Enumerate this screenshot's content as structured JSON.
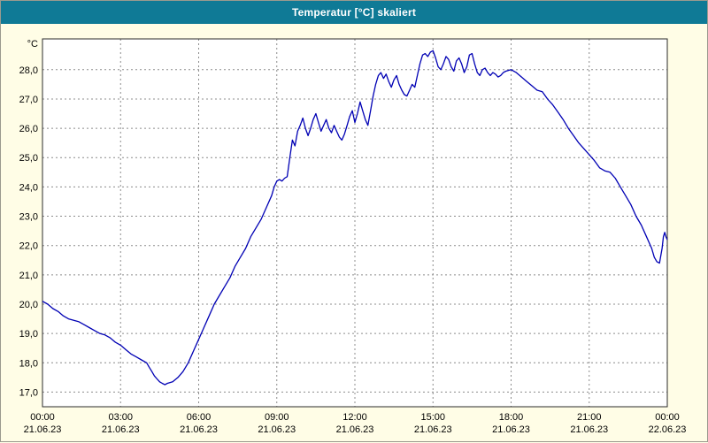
{
  "header": {
    "title": "Temperatur [°C] skaliert"
  },
  "colors": {
    "background": "#fffde6",
    "titlebar": "#0f7a96",
    "title_text": "#ffffff",
    "plot_background": "#ffffff",
    "plot_border": "#2b2b2b",
    "grid": "#8c8c8c",
    "line": "#0000b4",
    "text": "#000000"
  },
  "chart_data": {
    "type": "line",
    "title": "Temperatur [°C] skaliert",
    "ylabel_unit": "°C",
    "xlabel": "",
    "grid": true,
    "legend": "none",
    "xlim": [
      0,
      24
    ],
    "ylim": [
      16.5,
      29.05
    ],
    "y_ticks": [
      {
        "value": 17,
        "label": "17,0"
      },
      {
        "value": 18,
        "label": "18,0"
      },
      {
        "value": 19,
        "label": "19,0"
      },
      {
        "value": 20,
        "label": "20,0"
      },
      {
        "value": 21,
        "label": "21,0"
      },
      {
        "value": 22,
        "label": "22,0"
      },
      {
        "value": 23,
        "label": "23,0"
      },
      {
        "value": 24,
        "label": "24,0"
      },
      {
        "value": 25,
        "label": "25,0"
      },
      {
        "value": 26,
        "label": "26,0"
      },
      {
        "value": 27,
        "label": "27,0"
      },
      {
        "value": 28,
        "label": "28,0"
      }
    ],
    "x_ticks": [
      {
        "hour": 0,
        "time": "00:00",
        "date": "21.06.23"
      },
      {
        "hour": 3,
        "time": "03:00",
        "date": "21.06.23"
      },
      {
        "hour": 6,
        "time": "06:00",
        "date": "21.06.23"
      },
      {
        "hour": 9,
        "time": "09:00",
        "date": "21.06.23"
      },
      {
        "hour": 12,
        "time": "12:00",
        "date": "21.06.23"
      },
      {
        "hour": 15,
        "time": "15:00",
        "date": "21.06.23"
      },
      {
        "hour": 18,
        "time": "18:00",
        "date": "21.06.23"
      },
      {
        "hour": 21,
        "time": "21:00",
        "date": "21.06.23"
      },
      {
        "hour": 24,
        "time": "00:00",
        "date": "22.06.23"
      }
    ],
    "series": [
      {
        "name": "Temperatur",
        "points": [
          [
            0.0,
            20.1
          ],
          [
            0.2,
            20.0
          ],
          [
            0.4,
            19.85
          ],
          [
            0.6,
            19.75
          ],
          [
            0.8,
            19.6
          ],
          [
            1.0,
            19.5
          ],
          [
            1.2,
            19.45
          ],
          [
            1.4,
            19.4
          ],
          [
            1.6,
            19.3
          ],
          [
            1.8,
            19.2
          ],
          [
            2.0,
            19.1
          ],
          [
            2.2,
            19.0
          ],
          [
            2.4,
            18.95
          ],
          [
            2.6,
            18.85
          ],
          [
            2.8,
            18.7
          ],
          [
            3.0,
            18.6
          ],
          [
            3.2,
            18.45
          ],
          [
            3.4,
            18.3
          ],
          [
            3.6,
            18.2
          ],
          [
            3.8,
            18.1
          ],
          [
            4.0,
            18.0
          ],
          [
            4.1,
            17.85
          ],
          [
            4.2,
            17.7
          ],
          [
            4.3,
            17.55
          ],
          [
            4.4,
            17.45
          ],
          [
            4.5,
            17.35
          ],
          [
            4.6,
            17.3
          ],
          [
            4.7,
            17.25
          ],
          [
            4.8,
            17.3
          ],
          [
            5.0,
            17.35
          ],
          [
            5.2,
            17.5
          ],
          [
            5.4,
            17.7
          ],
          [
            5.6,
            18.0
          ],
          [
            5.8,
            18.4
          ],
          [
            6.0,
            18.8
          ],
          [
            6.2,
            19.2
          ],
          [
            6.4,
            19.6
          ],
          [
            6.6,
            20.0
          ],
          [
            6.8,
            20.3
          ],
          [
            7.0,
            20.6
          ],
          [
            7.2,
            20.9
          ],
          [
            7.4,
            21.3
          ],
          [
            7.6,
            21.6
          ],
          [
            7.8,
            21.9
          ],
          [
            8.0,
            22.3
          ],
          [
            8.2,
            22.6
          ],
          [
            8.4,
            22.9
          ],
          [
            8.6,
            23.3
          ],
          [
            8.8,
            23.7
          ],
          [
            8.9,
            24.0
          ],
          [
            9.0,
            24.2
          ],
          [
            9.1,
            24.25
          ],
          [
            9.2,
            24.2
          ],
          [
            9.3,
            24.3
          ],
          [
            9.4,
            24.35
          ],
          [
            9.5,
            25.0
          ],
          [
            9.6,
            25.6
          ],
          [
            9.7,
            25.4
          ],
          [
            9.8,
            25.9
          ],
          [
            9.9,
            26.1
          ],
          [
            10.0,
            26.35
          ],
          [
            10.1,
            26.0
          ],
          [
            10.2,
            25.75
          ],
          [
            10.3,
            26.0
          ],
          [
            10.4,
            26.3
          ],
          [
            10.5,
            26.5
          ],
          [
            10.6,
            26.2
          ],
          [
            10.7,
            25.9
          ],
          [
            10.8,
            26.1
          ],
          [
            10.9,
            26.3
          ],
          [
            11.0,
            26.0
          ],
          [
            11.1,
            25.85
          ],
          [
            11.2,
            26.1
          ],
          [
            11.3,
            25.9
          ],
          [
            11.4,
            25.7
          ],
          [
            11.5,
            25.6
          ],
          [
            11.6,
            25.8
          ],
          [
            11.7,
            26.1
          ],
          [
            11.8,
            26.4
          ],
          [
            11.9,
            26.6
          ],
          [
            12.0,
            26.2
          ],
          [
            12.1,
            26.5
          ],
          [
            12.2,
            26.9
          ],
          [
            12.3,
            26.6
          ],
          [
            12.4,
            26.3
          ],
          [
            12.5,
            26.1
          ],
          [
            12.6,
            26.6
          ],
          [
            12.7,
            27.1
          ],
          [
            12.8,
            27.5
          ],
          [
            12.9,
            27.8
          ],
          [
            13.0,
            27.9
          ],
          [
            13.1,
            27.7
          ],
          [
            13.2,
            27.85
          ],
          [
            13.3,
            27.6
          ],
          [
            13.4,
            27.4
          ],
          [
            13.5,
            27.65
          ],
          [
            13.6,
            27.8
          ],
          [
            13.7,
            27.5
          ],
          [
            13.8,
            27.3
          ],
          [
            13.9,
            27.15
          ],
          [
            14.0,
            27.1
          ],
          [
            14.1,
            27.3
          ],
          [
            14.2,
            27.5
          ],
          [
            14.3,
            27.4
          ],
          [
            14.4,
            27.8
          ],
          [
            14.5,
            28.2
          ],
          [
            14.6,
            28.5
          ],
          [
            14.7,
            28.55
          ],
          [
            14.8,
            28.45
          ],
          [
            14.9,
            28.6
          ],
          [
            15.0,
            28.65
          ],
          [
            15.1,
            28.4
          ],
          [
            15.2,
            28.1
          ],
          [
            15.3,
            28.0
          ],
          [
            15.4,
            28.2
          ],
          [
            15.5,
            28.45
          ],
          [
            15.6,
            28.35
          ],
          [
            15.7,
            28.1
          ],
          [
            15.8,
            27.95
          ],
          [
            15.9,
            28.3
          ],
          [
            16.0,
            28.4
          ],
          [
            16.1,
            28.2
          ],
          [
            16.2,
            27.9
          ],
          [
            16.3,
            28.1
          ],
          [
            16.4,
            28.5
          ],
          [
            16.5,
            28.55
          ],
          [
            16.6,
            28.2
          ],
          [
            16.7,
            27.9
          ],
          [
            16.8,
            27.8
          ],
          [
            16.9,
            28.0
          ],
          [
            17.0,
            28.05
          ],
          [
            17.1,
            27.9
          ],
          [
            17.2,
            27.8
          ],
          [
            17.3,
            27.9
          ],
          [
            17.4,
            27.85
          ],
          [
            17.5,
            27.75
          ],
          [
            17.6,
            27.8
          ],
          [
            17.7,
            27.9
          ],
          [
            17.8,
            27.95
          ],
          [
            18.0,
            28.0
          ],
          [
            18.2,
            27.9
          ],
          [
            18.4,
            27.75
          ],
          [
            18.6,
            27.6
          ],
          [
            18.8,
            27.45
          ],
          [
            19.0,
            27.3
          ],
          [
            19.2,
            27.25
          ],
          [
            19.4,
            27.0
          ],
          [
            19.6,
            26.8
          ],
          [
            19.8,
            26.55
          ],
          [
            20.0,
            26.3
          ],
          [
            20.2,
            26.0
          ],
          [
            20.4,
            25.75
          ],
          [
            20.6,
            25.5
          ],
          [
            20.8,
            25.3
          ],
          [
            21.0,
            25.1
          ],
          [
            21.2,
            24.9
          ],
          [
            21.4,
            24.65
          ],
          [
            21.6,
            24.55
          ],
          [
            21.8,
            24.5
          ],
          [
            22.0,
            24.3
          ],
          [
            22.2,
            24.0
          ],
          [
            22.4,
            23.7
          ],
          [
            22.6,
            23.4
          ],
          [
            22.8,
            23.0
          ],
          [
            23.0,
            22.7
          ],
          [
            23.2,
            22.3
          ],
          [
            23.4,
            21.9
          ],
          [
            23.5,
            21.6
          ],
          [
            23.6,
            21.45
          ],
          [
            23.7,
            21.4
          ],
          [
            23.8,
            21.9
          ],
          [
            23.85,
            22.3
          ],
          [
            23.9,
            22.45
          ],
          [
            23.95,
            22.3
          ],
          [
            24.0,
            22.2
          ]
        ]
      }
    ]
  }
}
